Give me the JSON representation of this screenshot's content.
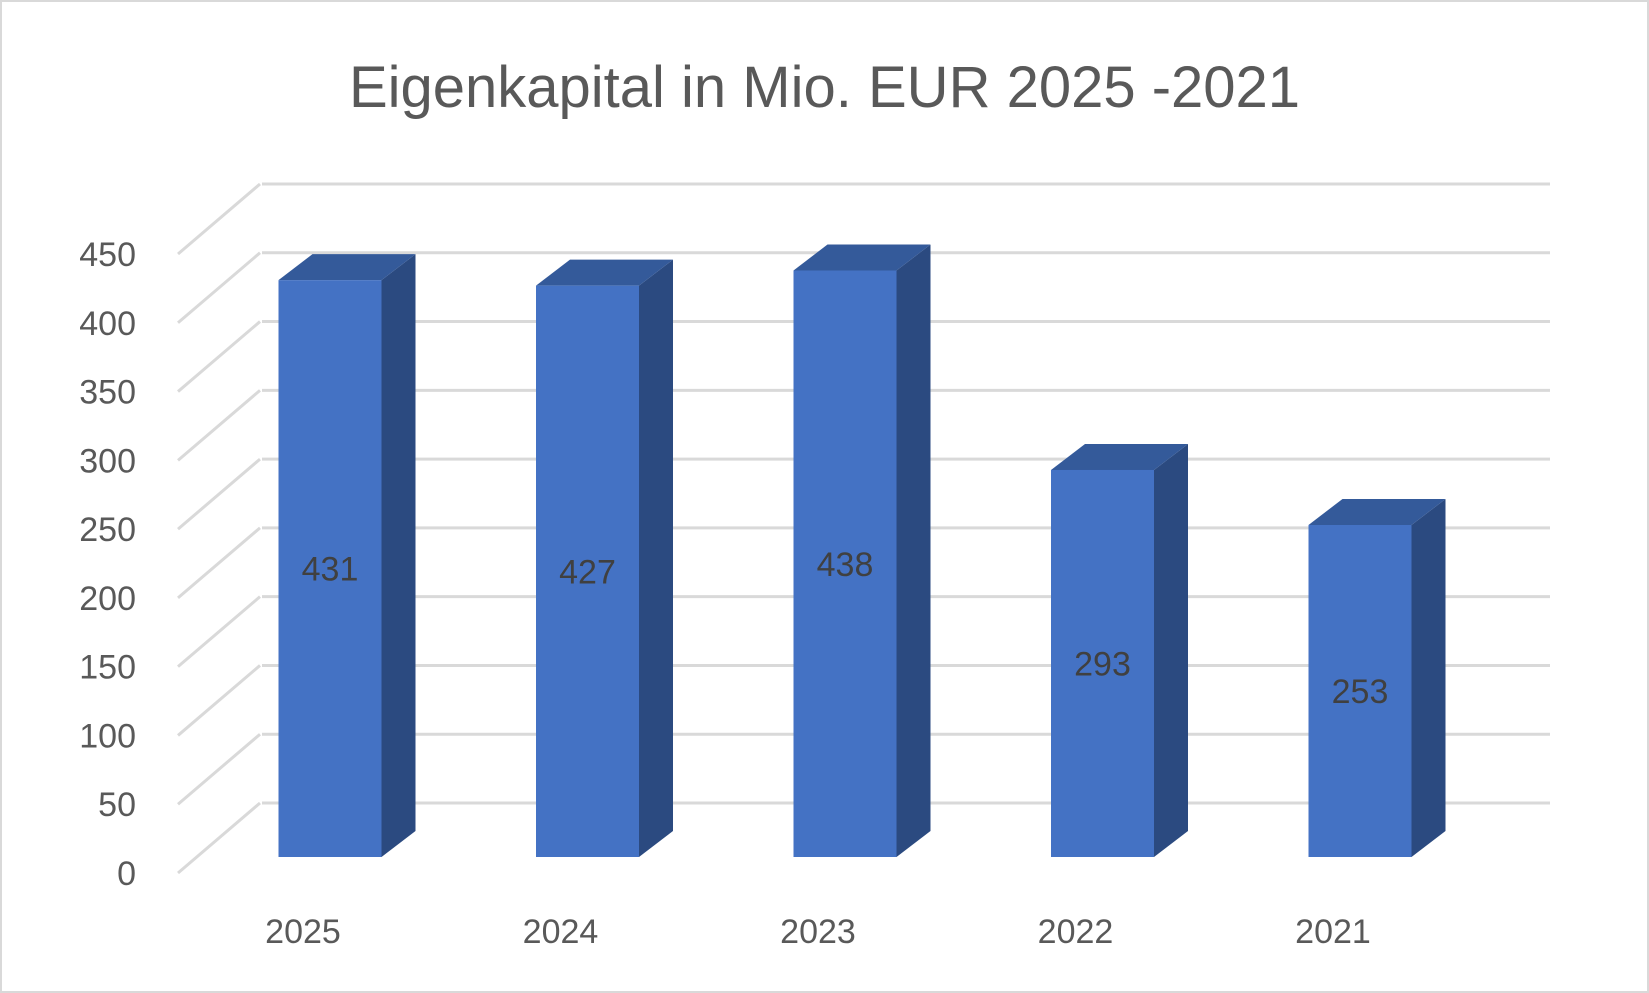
{
  "chart_data": {
    "type": "bar",
    "title": "Eigenkapital in Mio. EUR 2025 -2021",
    "xlabel": "",
    "ylabel": "",
    "categories": [
      "2025",
      "2024",
      "2023",
      "2022",
      "2021"
    ],
    "values": [
      431,
      427,
      438,
      293,
      253
    ],
    "data_labels": [
      "431",
      "427",
      "438",
      "293",
      "253"
    ],
    "ylim": [
      0,
      450
    ],
    "yticks": [
      0,
      50,
      100,
      150,
      200,
      250,
      300,
      350,
      400,
      450
    ],
    "ytick_labels": [
      "0",
      "50",
      "100",
      "150",
      "200",
      "250",
      "300",
      "350",
      "400",
      "450"
    ],
    "grid": true,
    "style": "3d-column",
    "colors": {
      "bar_front": "#4472c4",
      "bar_side": "#2b4a80",
      "bar_top": "#345a9a",
      "grid": "#d9d9d9",
      "text": "#595959"
    }
  }
}
